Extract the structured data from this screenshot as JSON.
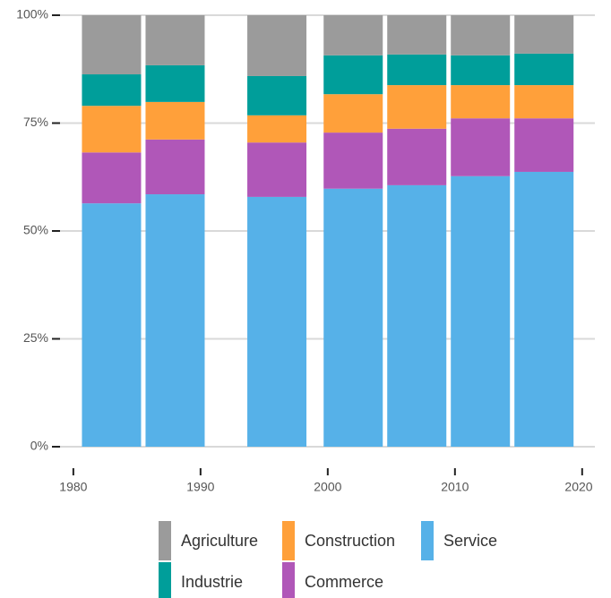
{
  "chart_data": {
    "type": "stacked_bar",
    "x": [
      1983,
      1988,
      1996,
      2002,
      2007,
      2012,
      2017
    ],
    "series": [
      {
        "name": "Agriculture",
        "color": "#9b9b9b",
        "values": [
          13.7,
          11.6,
          14.1,
          9.3,
          9.1,
          9.3,
          8.9
        ]
      },
      {
        "name": "Industrie",
        "color": "#009e9a",
        "values": [
          7.3,
          8.5,
          9.1,
          9.0,
          7.1,
          6.9,
          7.3
        ]
      },
      {
        "name": "Construction",
        "color": "#ffa03a",
        "values": [
          10.8,
          8.7,
          6.3,
          8.9,
          10.1,
          7.7,
          7.7
        ]
      },
      {
        "name": "Commerce",
        "color": "#b057b8",
        "values": [
          11.8,
          12.7,
          12.6,
          13.0,
          13.1,
          13.4,
          12.4
        ]
      },
      {
        "name": "Service",
        "color": "#56b1e8",
        "values": [
          56.4,
          58.5,
          57.9,
          59.8,
          60.6,
          62.7,
          63.7
        ]
      }
    ],
    "xlim": [
      1978.6,
      2021.0
    ],
    "xticks": [
      1980,
      1990,
      2000,
      2010,
      2020
    ],
    "ylim": [
      0,
      100
    ],
    "yticks": [
      {
        "value": 0,
        "label": "0%"
      },
      {
        "value": 25,
        "label": "25%"
      },
      {
        "value": 50,
        "label": "50%"
      },
      {
        "value": 75,
        "label": "75%"
      },
      {
        "value": 100,
        "label": "100%"
      }
    ],
    "grid": true,
    "legend": "bottom"
  }
}
